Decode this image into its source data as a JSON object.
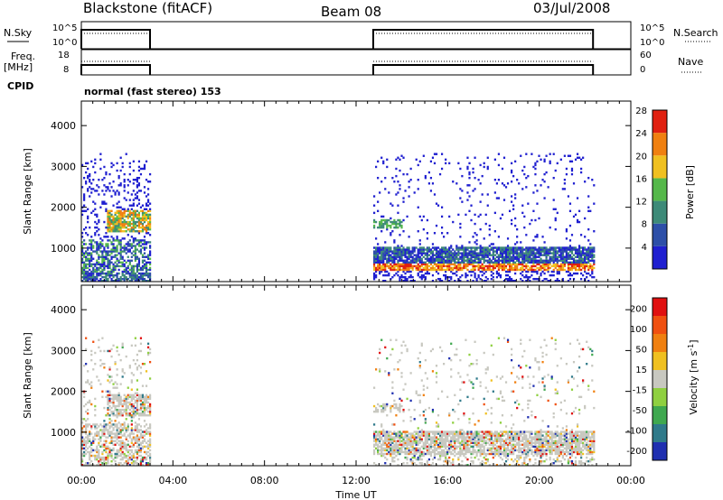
{
  "header": {
    "station": "Blackstone (fitACF)",
    "beam": "Beam 08",
    "date": "03/Jul/2008"
  },
  "side_labels": {
    "nsky": "N.Sky",
    "freq_line1": "Freq.",
    "freq_line2": "[MHz]",
    "cpid": "CPID",
    "nsearch": "N.Search",
    "nave": "Nave"
  },
  "cpid_text": "normal (fast stereo) 153",
  "chart_data": [
    {
      "type": "line",
      "name": "noise-panel",
      "ylabel_left": "N.Sky",
      "ylabel_right": "N.Search",
      "left_ticks": [
        "10^5",
        "10^0"
      ],
      "right_ticks": [
        "10^5",
        "10^0"
      ],
      "segments_hours": [
        [
          0.0,
          3.0
        ],
        [
          12.75,
          22.35
        ]
      ]
    },
    {
      "type": "line",
      "name": "frequency-panel",
      "ylabel_left": "Freq. [MHz]",
      "ylabel_right": "Nave",
      "left_ticks": [
        "18",
        "8"
      ],
      "right_ticks": [
        "60",
        "0"
      ],
      "segments_hours": [
        [
          0.0,
          3.0
        ],
        [
          12.75,
          22.35
        ]
      ]
    },
    {
      "type": "heatmap",
      "name": "power-panel",
      "ylabel": "Slant Range [km]",
      "yticks": [
        "1000",
        "2000",
        "3000",
        "4000"
      ],
      "ylim": [
        180,
        4600
      ],
      "xlim_hours": [
        0,
        24
      ],
      "colorbar_label": "Power [dB]",
      "colorbar_ticks": [
        "4",
        "8",
        "12",
        "16",
        "20",
        "24",
        "28"
      ],
      "colors": [
        "#1f1fd0",
        "#2d4fa8",
        "#3d8a78",
        "#55b84a",
        "#f0c020",
        "#f08010",
        "#e02010"
      ],
      "segments_hours": [
        [
          0.0,
          3.0
        ],
        [
          12.75,
          22.35
        ]
      ]
    },
    {
      "type": "heatmap",
      "name": "velocity-panel",
      "ylabel": "Slant Range [km]",
      "yticks": [
        "1000",
        "2000",
        "3000",
        "4000"
      ],
      "ylim": [
        180,
        4600
      ],
      "xlim_hours": [
        0,
        24
      ],
      "colorbar_label": "Velocity [m s^-1]",
      "colorbar_ticks": [
        "200",
        "100",
        "50",
        "15",
        "-15",
        "-50",
        "-100",
        "-200"
      ],
      "colors": [
        "#1f2fb0",
        "#2f7a8a",
        "#3fa84f",
        "#8fd040",
        "#c8c8c0",
        "#f0c020",
        "#f08010",
        "#f05010",
        "#e01010"
      ],
      "segments_hours": [
        [
          0.0,
          3.0
        ],
        [
          12.75,
          22.35
        ]
      ]
    }
  ],
  "xaxis": {
    "ticks": [
      "00:00",
      "04:00",
      "08:00",
      "12:00",
      "16:00",
      "20:00",
      "00:00"
    ],
    "label": "Time UT"
  }
}
